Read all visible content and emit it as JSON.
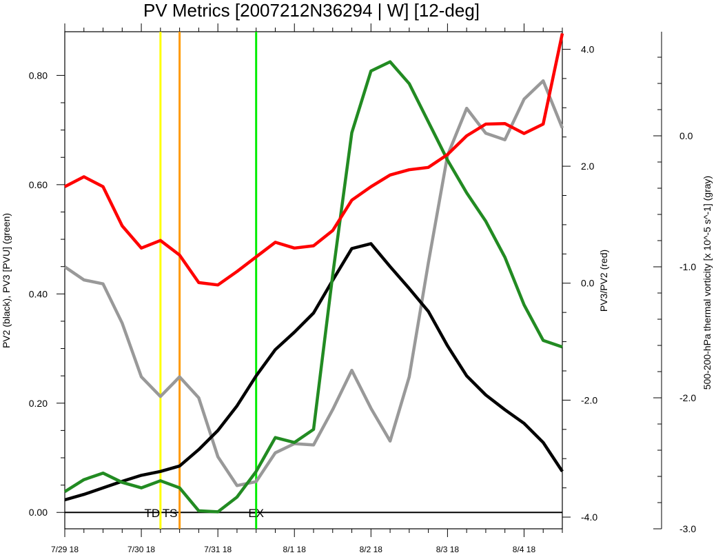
{
  "chart_data": {
    "type": "line",
    "title": "PV Metrics [2007212N36294 | W] [12-deg]",
    "ylabel_left": "PV2 (black), PV3 [PVU] (green)",
    "ylabel_right1": "PV3/PV2 (red)",
    "ylabel_right2": "500-200-hPa thermal vorticity [x 10^-5 s^-1] (gray)",
    "x_tick_labels": [
      "7/29 18",
      "7/30 18",
      "7/31 18",
      "8/1 18",
      "8/2 18",
      "8/3 18",
      "8/4 18"
    ],
    "x_tick_days": [
      0,
      1,
      2,
      3,
      4,
      5,
      6
    ],
    "xlim": [
      0,
      6.5
    ],
    "left_axis": {
      "ylim": [
        -0.03,
        0.88
      ],
      "major_ticks": [
        0.0,
        0.2,
        0.4,
        0.6,
        0.8
      ],
      "tick_labels": [
        "0.00",
        "0.20",
        "0.40",
        "0.60",
        "0.80"
      ]
    },
    "right_axis1": {
      "ylim": [
        -4.2,
        4.3
      ],
      "major_ticks": [
        -4.0,
        -2.0,
        0.0,
        2.0,
        4.0
      ],
      "tick_labels": [
        "-4.0",
        "-2.0",
        "0.0",
        "2.0",
        "4.0"
      ]
    },
    "right_axis2": {
      "ylim": [
        -3.0,
        0.7
      ],
      "major_ticks": [
        -3.0,
        -2.0,
        -1.0,
        0.0
      ],
      "tick_labels": [
        "-3.0",
        "-2.0",
        "-1.0",
        "0.0"
      ]
    },
    "x": [
      0,
      0.25,
      0.5,
      0.75,
      1.0,
      1.25,
      1.5,
      1.75,
      2.0,
      2.25,
      2.5,
      2.75,
      3.0,
      3.25,
      3.5,
      3.75,
      4.0,
      4.25,
      4.5,
      4.75,
      5.0,
      5.25,
      5.5,
      5.75,
      6.0,
      6.25,
      6.5
    ],
    "series": [
      {
        "name": "PV2",
        "axis": "left",
        "color": "#000000",
        "values": [
          0.023,
          0.033,
          0.045,
          0.057,
          0.068,
          0.075,
          0.085,
          0.115,
          0.15,
          0.195,
          0.25,
          0.298,
          0.33,
          0.365,
          0.425,
          0.483,
          0.492,
          0.45,
          0.41,
          0.368,
          0.305,
          0.25,
          0.215,
          0.188,
          0.163,
          0.128,
          0.075
        ]
      },
      {
        "name": "PV3",
        "axis": "left",
        "color": "#228b22",
        "values": [
          0.038,
          0.06,
          0.072,
          0.055,
          0.045,
          0.058,
          0.045,
          0.003,
          0.001,
          0.028,
          0.075,
          0.137,
          0.128,
          0.152,
          0.435,
          0.695,
          0.808,
          0.825,
          0.785,
          0.715,
          0.645,
          0.585,
          0.533,
          0.467,
          0.38,
          0.315,
          0.303
        ]
      },
      {
        "name": "PV3/PV2",
        "axis": "right1",
        "color": "#ff0000",
        "values": [
          1.65,
          1.82,
          1.65,
          0.98,
          0.6,
          0.73,
          0.48,
          0.01,
          -0.03,
          0.2,
          0.45,
          0.7,
          0.6,
          0.64,
          0.9,
          1.42,
          1.65,
          1.85,
          1.94,
          1.98,
          2.2,
          2.52,
          2.72,
          2.73,
          2.56,
          2.72,
          4.27
        ]
      },
      {
        "name": "thermal vorticity",
        "axis": "right2",
        "color": "#999999",
        "values": [
          -1.0,
          -1.1,
          -1.13,
          -1.43,
          -1.84,
          -1.99,
          -1.84,
          -2.0,
          -2.45,
          -2.67,
          -2.64,
          -2.42,
          -2.35,
          -2.36,
          -2.09,
          -1.79,
          -2.08,
          -2.33,
          -1.84,
          -0.97,
          -0.15,
          0.21,
          0.02,
          -0.03,
          0.28,
          0.42,
          0.06
        ]
      }
    ],
    "events": [
      {
        "label": "TD",
        "x": 1.25,
        "color": "#ffff00"
      },
      {
        "label": "TS",
        "x": 1.5,
        "color": "#ff9900"
      },
      {
        "label": "EX",
        "x": 2.5,
        "color": "#00ee00"
      }
    ],
    "grid": false,
    "legend": "none",
    "zero_line": true
  }
}
